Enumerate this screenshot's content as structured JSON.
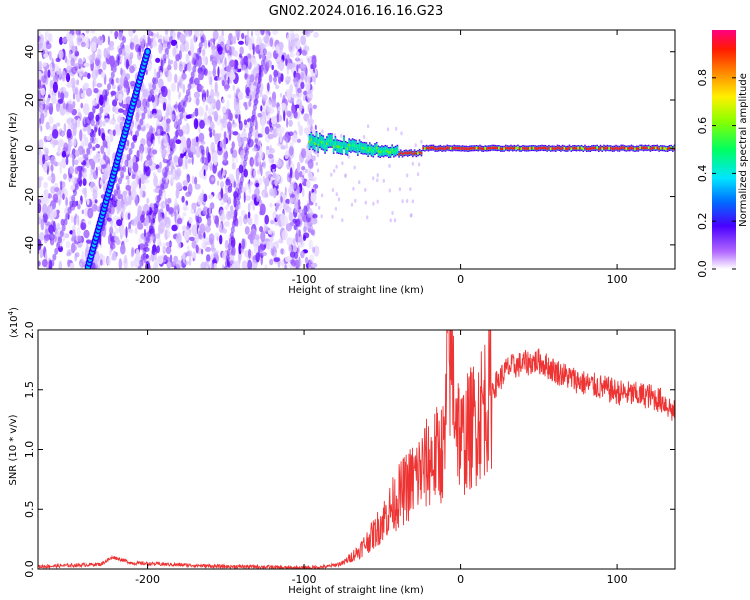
{
  "title": "GN02.2024.016.16.16.G23",
  "chart_data": [
    {
      "type": "heatmap",
      "xlabel": "Height of straight line (km)",
      "ylabel": "Frequency (Hz)",
      "xlim": [
        -270,
        137
      ],
      "ylim": [
        -50,
        49
      ],
      "x_ticks": [
        -200,
        -100,
        0,
        100
      ],
      "y_ticks": [
        -40,
        -20,
        0,
        20,
        40
      ],
      "x_tick_labels": [
        "-200",
        "-100",
        "0",
        "100"
      ],
      "y_tick_labels": [
        "-40",
        "-20",
        "0",
        "20",
        "40"
      ],
      "colorbar": {
        "label": "Normalized spectral amplitude",
        "range": [
          0,
          1
        ],
        "ticks": [
          0.0,
          0.2,
          0.4,
          0.6,
          0.8
        ],
        "tick_labels": [
          "0.0",
          "0.2",
          "0.4",
          "0.6",
          "0.8"
        ]
      },
      "features": {
        "noise_region_x": [
          -270,
          -92
        ],
        "streak_line": {
          "x": [
            -238,
            -200
          ],
          "y": [
            -49,
            40
          ]
        },
        "carrier_line": {
          "x": [
            -97,
            137
          ],
          "y_approx": 0
        }
      }
    },
    {
      "type": "line",
      "xlabel": "Height of straight line (km)",
      "ylabel": "SNR (10 * v/v)",
      "scale_label": "(x10",
      "scale_exponent": "4",
      "scale_suffix": ")",
      "xlim": [
        -270,
        137
      ],
      "ylim": [
        0,
        2.0
      ],
      "x_ticks": [
        -200,
        -100,
        0,
        100
      ],
      "y_ticks": [
        0.0,
        0.5,
        1.0,
        1.5,
        2.0
      ],
      "x_tick_labels": [
        "-200",
        "-100",
        "0",
        "100"
      ],
      "y_tick_labels": [
        "0.0",
        "0.5",
        "1.0",
        "1.5",
        "2.0"
      ],
      "color": "#ee3333",
      "series": [
        {
          "x": [
            -270,
            -250,
            -230,
            -222,
            -210,
            -190,
            -170,
            -150,
            -130,
            -110,
            -95,
            -85,
            -75,
            -65,
            -55,
            -45,
            -40,
            -30,
            -20,
            -10,
            -8,
            0,
            10,
            20,
            30,
            40,
            50,
            60,
            70,
            80,
            90,
            100,
            110,
            120,
            130,
            137
          ],
          "values": [
            0.02,
            0.03,
            0.04,
            0.1,
            0.05,
            0.04,
            0.03,
            0.02,
            0.02,
            0.01,
            0.01,
            0.02,
            0.05,
            0.15,
            0.3,
            0.5,
            0.6,
            0.75,
            0.9,
            1.0,
            1.95,
            1.05,
            1.25,
            1.5,
            1.68,
            1.72,
            1.74,
            1.66,
            1.6,
            1.55,
            1.52,
            1.48,
            1.46,
            1.45,
            1.4,
            1.3
          ]
        }
      ]
    }
  ]
}
